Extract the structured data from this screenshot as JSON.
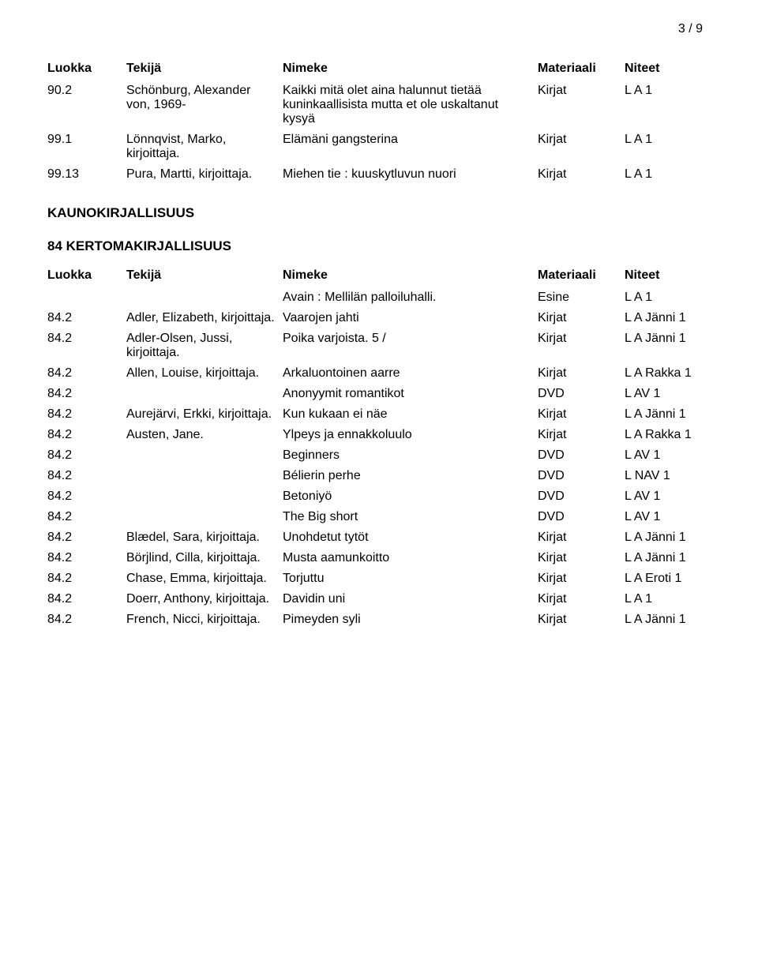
{
  "page_number": "3 / 9",
  "columns": {
    "luokka": "Luokka",
    "tekija": "Tekijä",
    "nimeke": "Nimeke",
    "materiaali": "Materiaali",
    "niteet": "Niteet"
  },
  "top_rows": [
    {
      "luokka": "90.2",
      "tekija": "Schönburg, Alexander von, 1969-",
      "nimeke": "Kaikki mitä olet aina halunnut tietää kuninkaallisista mutta et ole uskaltanut kysyä",
      "materiaali": "Kirjat",
      "niteet": "L A 1"
    },
    {
      "luokka": "99.1",
      "tekija": "Lönnqvist, Marko, kirjoittaja.",
      "nimeke": "Elämäni gangsterina",
      "materiaali": "Kirjat",
      "niteet": "L A 1"
    },
    {
      "luokka": "99.13",
      "tekija": "Pura, Martti, kirjoittaja.",
      "nimeke": "Miehen tie : kuuskytluvun nuori",
      "materiaali": "Kirjat",
      "niteet": "L A 1"
    }
  ],
  "section1_title": "KAUNOKIRJALLISUUS",
  "section2_title": "84 KERTOMAKIRJALLISUUS",
  "bottom_rows": [
    {
      "luokka": "",
      "tekija": "",
      "nimeke": "Avain : Mellilän palloiluhalli.",
      "materiaali": "Esine",
      "niteet": "L A 1"
    },
    {
      "luokka": "84.2",
      "tekija": "Adler, Elizabeth, kirjoittaja.",
      "nimeke": "Vaarojen jahti",
      "materiaali": "Kirjat",
      "niteet": "L A Jänni 1"
    },
    {
      "luokka": "84.2",
      "tekija": "Adler-Olsen, Jussi, kirjoittaja.",
      "nimeke": "Poika varjoista. 5 /",
      "materiaali": "Kirjat",
      "niteet": "L A Jänni 1"
    },
    {
      "luokka": "84.2",
      "tekija": "Allen, Louise, kirjoittaja.",
      "nimeke": "Arkaluontoinen aarre",
      "materiaali": "Kirjat",
      "niteet": "L A Rakka 1"
    },
    {
      "luokka": "84.2",
      "tekija": "",
      "nimeke": "Anonyymit romantikot",
      "materiaali": "DVD",
      "niteet": "L AV 1"
    },
    {
      "luokka": "84.2",
      "tekija": "Aurejärvi, Erkki, kirjoittaja.",
      "nimeke": "Kun kukaan ei näe",
      "materiaali": "Kirjat",
      "niteet": "L A Jänni 1"
    },
    {
      "luokka": "84.2",
      "tekija": "Austen, Jane.",
      "nimeke": "Ylpeys ja ennakkoluulo",
      "materiaali": "Kirjat",
      "niteet": "L A Rakka 1"
    },
    {
      "luokka": "84.2",
      "tekija": "",
      "nimeke": "Beginners",
      "materiaali": "DVD",
      "niteet": "L AV 1"
    },
    {
      "luokka": "84.2",
      "tekija": "",
      "nimeke": "Bélierin perhe",
      "materiaali": "DVD",
      "niteet": "L NAV 1"
    },
    {
      "luokka": "84.2",
      "tekija": "",
      "nimeke": "Betoniyö",
      "materiaali": "DVD",
      "niteet": "L AV 1"
    },
    {
      "luokka": "84.2",
      "tekija": "",
      "nimeke": "The Big short",
      "materiaali": "DVD",
      "niteet": "L AV 1"
    },
    {
      "luokka": "84.2",
      "tekija": "Blædel, Sara, kirjoittaja.",
      "nimeke": "Unohdetut tytöt",
      "materiaali": "Kirjat",
      "niteet": "L A Jänni 1"
    },
    {
      "luokka": "84.2",
      "tekija": "Börjlind, Cilla, kirjoittaja.",
      "nimeke": "Musta aamunkoitto",
      "materiaali": "Kirjat",
      "niteet": "L A Jänni 1"
    },
    {
      "luokka": "84.2",
      "tekija": "Chase, Emma, kirjoittaja.",
      "nimeke": "Torjuttu",
      "materiaali": "Kirjat",
      "niteet": "L A Eroti 1"
    },
    {
      "luokka": "84.2",
      "tekija": "Doerr, Anthony, kirjoittaja.",
      "nimeke": "Davidin uni",
      "materiaali": "Kirjat",
      "niteet": "L A 1"
    },
    {
      "luokka": "84.2",
      "tekija": "French, Nicci, kirjoittaja.",
      "nimeke": "Pimeyden syli",
      "materiaali": "Kirjat",
      "niteet": "L A Jänni 1"
    }
  ]
}
